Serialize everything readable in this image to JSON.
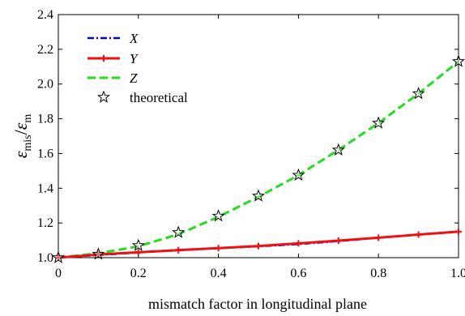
{
  "chart_data": {
    "type": "line",
    "xlabel": "mismatch factor in longitudinal plane",
    "ylabel": {
      "main": "ε",
      "sub1": "mis",
      "sep": "/",
      "main2": "ε",
      "sub2": "m"
    },
    "xlim": [
      0,
      1.0
    ],
    "ylim": [
      1.0,
      2.4
    ],
    "xticks": [
      0,
      0.2,
      0.4,
      0.6,
      0.8,
      1.0
    ],
    "xtick_labels": [
      "0",
      "0.2",
      "0.4",
      "0.6",
      "0.8",
      "1.0"
    ],
    "yticks": [
      1.0,
      1.2,
      1.4,
      1.6,
      1.8,
      2.0,
      2.2,
      2.4
    ],
    "ytick_labels": [
      "1.0",
      "1.2",
      "1.4",
      "1.6",
      "1.8",
      "2.0",
      "2.2",
      "2.4"
    ],
    "grid": false,
    "legend_position": "top-left",
    "x": [
      0,
      0.1,
      0.2,
      0.3,
      0.4,
      0.5,
      0.6,
      0.7,
      0.8,
      0.9,
      1.0
    ],
    "series": [
      {
        "name": "X",
        "style": "dash-dot",
        "color": "#0000cc",
        "values": [
          1.0,
          1.015,
          1.03,
          1.045,
          1.055,
          1.065,
          1.078,
          1.095,
          1.115,
          1.133,
          1.15
        ]
      },
      {
        "name": "Y",
        "style": "solid-plus",
        "color": "#ee1111",
        "values": [
          1.0,
          1.018,
          1.031,
          1.043,
          1.055,
          1.067,
          1.082,
          1.098,
          1.115,
          1.133,
          1.15
        ]
      },
      {
        "name": "Z",
        "style": "dashed",
        "color": "#22dd22",
        "values": [
          1.0,
          1.025,
          1.065,
          1.135,
          1.235,
          1.35,
          1.475,
          1.62,
          1.775,
          1.945,
          2.13
        ]
      },
      {
        "name": "theoretical",
        "style": "star-markers",
        "color": "#000000",
        "values": [
          1.0,
          1.02,
          1.07,
          1.145,
          1.24,
          1.355,
          1.475,
          1.62,
          1.775,
          1.945,
          2.13
        ]
      }
    ]
  }
}
